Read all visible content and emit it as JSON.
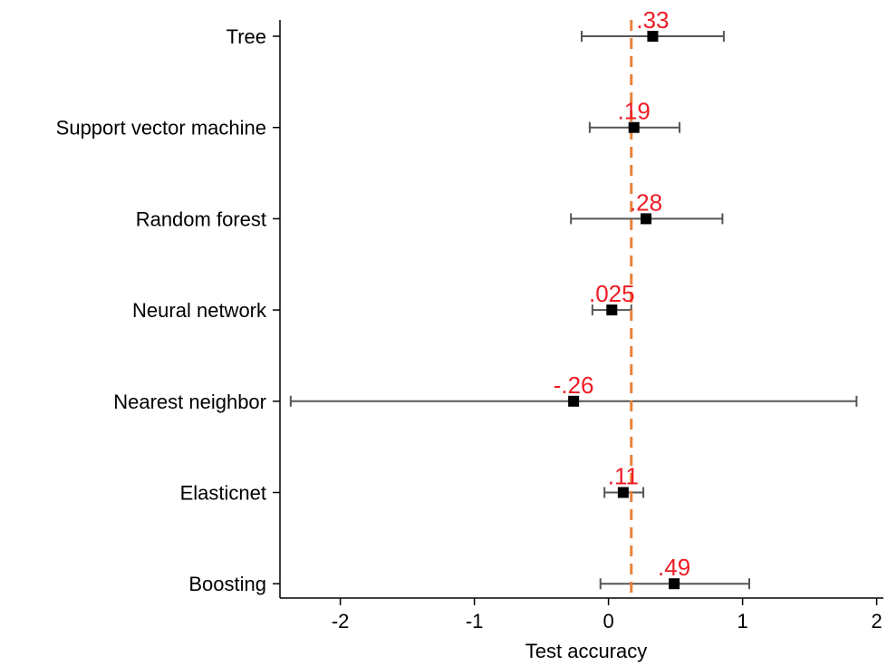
{
  "chart_data": {
    "type": "scatter",
    "xlabel": "Test accuracy",
    "xlim": [
      -2.45,
      2.05
    ],
    "xticks": [
      -2,
      -1,
      0,
      1,
      2
    ],
    "xtick_labels": [
      "-2",
      "-1",
      "0",
      "1",
      "2"
    ],
    "reference_line_x": 0.17,
    "categories": [
      "Tree",
      "Support vector machine",
      "Random forest",
      "Neural network",
      "Nearest neighbor",
      "Elasticnet",
      "Boosting"
    ],
    "points": [
      {
        "label": "Tree",
        "estimate": 0.33,
        "lower": -0.2,
        "upper": 0.86,
        "value_label": ".33"
      },
      {
        "label": "Support vector machine",
        "estimate": 0.19,
        "lower": -0.14,
        "upper": 0.53,
        "value_label": ".19"
      },
      {
        "label": "Random forest",
        "estimate": 0.28,
        "lower": -0.28,
        "upper": 0.85,
        "value_label": ".28"
      },
      {
        "label": "Neural network",
        "estimate": 0.025,
        "lower": -0.12,
        "upper": 0.17,
        "value_label": ".025"
      },
      {
        "label": "Nearest neighbor",
        "estimate": -0.26,
        "lower": -2.37,
        "upper": 1.85,
        "value_label": "-.26"
      },
      {
        "label": "Elasticnet",
        "estimate": 0.11,
        "lower": -0.03,
        "upper": 0.26,
        "value_label": ".11"
      },
      {
        "label": "Boosting",
        "estimate": 0.49,
        "lower": -0.06,
        "upper": 1.05,
        "value_label": ".49"
      }
    ],
    "colors": {
      "marker": "#000000",
      "value_label": "#ee1c25",
      "reference_line": "#e8823a",
      "ci": "#555555"
    },
    "grid": false,
    "legend": "none"
  }
}
